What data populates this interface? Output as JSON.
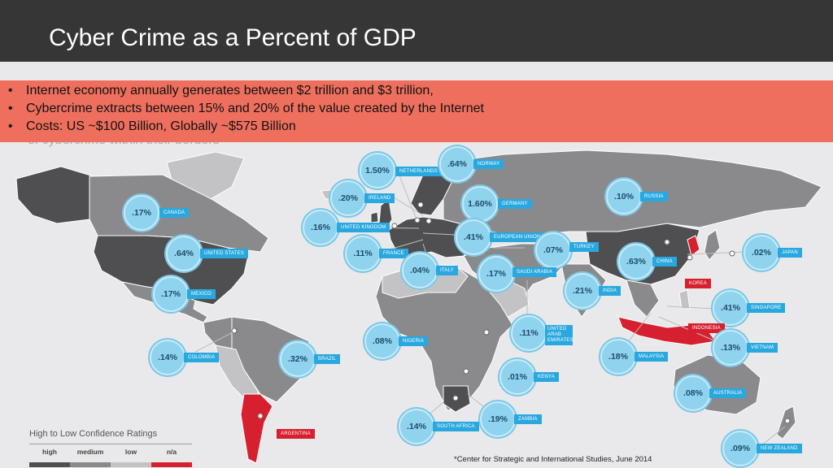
{
  "header": {
    "title": "Cyber Crime as a Percent of GDP"
  },
  "bullets": [
    "Internet economy annually generates between $2 trillion and $3 trillion,",
    "Cybercrime extracts between 15% and 20% of the value created by the Internet",
    "Costs: US ~$100 Billion, Globally ~$575 Billion"
  ],
  "bullet_marker": "•",
  "ghost_text": "of cybercrime within their borders",
  "colors": {
    "header_bg": "#363636",
    "bullet_bg": "#ee6f5e",
    "bubble": "#8fd3ef",
    "tag": "#29a8df",
    "na_red": "#d6202f",
    "high": "#4f4f52",
    "medium": "#8a8a8d",
    "low": "#c3c3c6"
  },
  "countries": [
    {
      "id": "canada",
      "pct": ".17%",
      "name": "CANADA"
    },
    {
      "id": "united-states",
      "pct": ".64%",
      "name": "UNITED STATES"
    },
    {
      "id": "mexico",
      "pct": ".17%",
      "name": "MEXICO"
    },
    {
      "id": "colombia",
      "pct": ".14%",
      "name": "COLOMBIA"
    },
    {
      "id": "brazil",
      "pct": ".32%",
      "name": "BRAZIL"
    },
    {
      "id": "argentina",
      "pct": "",
      "name": "ARGENTINA"
    },
    {
      "id": "netherlands",
      "pct": "1.50%",
      "name": "NETHERLANDS"
    },
    {
      "id": "norway",
      "pct": ".64%",
      "name": "NORWAY"
    },
    {
      "id": "ireland",
      "pct": ".20%",
      "name": "IRELAND"
    },
    {
      "id": "germany",
      "pct": "1.60%",
      "name": "GERMANY"
    },
    {
      "id": "united-kingdom",
      "pct": ".16%",
      "name": "UNITED KINGDOM"
    },
    {
      "id": "european-union",
      "pct": ".41%",
      "name": "EUROPEAN UNION"
    },
    {
      "id": "france",
      "pct": ".11%",
      "name": "FRANCE"
    },
    {
      "id": "italy",
      "pct": ".04%",
      "name": "ITALY"
    },
    {
      "id": "turkey",
      "pct": ".07%",
      "name": "TURKEY"
    },
    {
      "id": "saudi-arabia",
      "pct": ".17%",
      "name": "SAUDI ARABIA"
    },
    {
      "id": "nigeria",
      "pct": ".08%",
      "name": "NIGERIA"
    },
    {
      "id": "uae",
      "pct": ".11%",
      "name": "UNITED ARAB EMIRATES"
    },
    {
      "id": "kenya",
      "pct": ".01%",
      "name": "KENYA"
    },
    {
      "id": "zambia",
      "pct": ".19%",
      "name": "ZAMBIA"
    },
    {
      "id": "south-africa",
      "pct": ".14%",
      "name": "SOUTH AFRICA"
    },
    {
      "id": "russia",
      "pct": ".10%",
      "name": "RUSSIA"
    },
    {
      "id": "china",
      "pct": ".63%",
      "name": "CHINA"
    },
    {
      "id": "korea",
      "pct": "",
      "name": "KOREA"
    },
    {
      "id": "japan",
      "pct": ".02%",
      "name": "JAPAN"
    },
    {
      "id": "india",
      "pct": ".21%",
      "name": "INDIA"
    },
    {
      "id": "singapore",
      "pct": ".41%",
      "name": "SINGAPORE"
    },
    {
      "id": "indonesia",
      "pct": "",
      "name": "INDONESIA"
    },
    {
      "id": "vietnam",
      "pct": ".13%",
      "name": "VIETNAM"
    },
    {
      "id": "malaysia",
      "pct": ".18%",
      "name": "MALAYSIA"
    },
    {
      "id": "australia",
      "pct": ".08%",
      "name": "AUSTRALIA"
    },
    {
      "id": "new-zealand",
      "pct": ".09%",
      "name": "NEW ZEALAND"
    }
  ],
  "legend": {
    "title": "High to Low Confidence Ratings",
    "items": [
      "high",
      "medium",
      "low",
      "n/a"
    ]
  },
  "source": "*Center for Strategic and International Studies, June 2014"
}
